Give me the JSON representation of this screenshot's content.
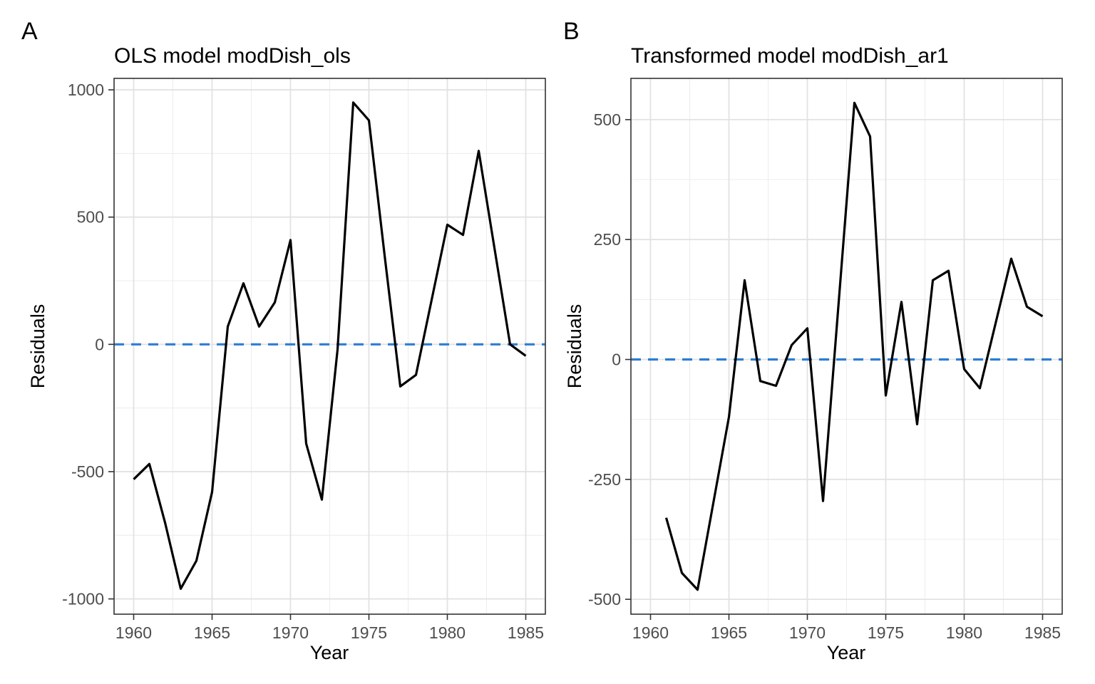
{
  "figure": {
    "tags": [
      "A",
      "B"
    ],
    "background_color": "#ffffff"
  },
  "style": {
    "series_line_color": "#000000",
    "zero_line_color": "#2d7dd2",
    "zero_line_style": "dashed",
    "panel_border_color": "#343434",
    "grid_major_color": "#e2e2e2",
    "grid_minor_color": "#ececec",
    "tick_label_color": "#4d4d4d",
    "text_color": "#000000"
  },
  "chart_data": [
    {
      "type": "line",
      "panel_tag": "A",
      "title": "OLS model modDish_ols",
      "xlabel": "Year",
      "ylabel": "Residuals",
      "x": [
        1960,
        1961,
        1962,
        1963,
        1964,
        1965,
        1966,
        1967,
        1968,
        1969,
        1970,
        1971,
        1972,
        1973,
        1974,
        1975,
        1976,
        1977,
        1978,
        1979,
        1980,
        1981,
        1982,
        1983,
        1984,
        1985
      ],
      "y": [
        -530,
        -470,
        -700,
        -960,
        -850,
        -580,
        70,
        240,
        70,
        165,
        410,
        -390,
        -610,
        -20,
        950,
        880,
        350,
        -165,
        -120,
        175,
        470,
        430,
        760,
        380,
        0,
        -45
      ],
      "x_ticks": [
        1960,
        1965,
        1970,
        1975,
        1980,
        1985
      ],
      "x_minor_ticks": [
        1962.5,
        1967.5,
        1972.5,
        1977.5,
        1982.5
      ],
      "y_ticks": [
        1000,
        500,
        0,
        -500,
        -1000
      ],
      "y_minor_ticks": [
        750,
        250,
        -250,
        -750
      ],
      "xlim": [
        1958.75,
        1986.25
      ],
      "ylim": [
        -1060,
        1045
      ],
      "reference_line": {
        "y": 0
      },
      "grid": true,
      "legend": "none"
    },
    {
      "type": "line",
      "panel_tag": "B",
      "title": "Transformed model modDish_ar1",
      "xlabel": "Year",
      "ylabel": "Residuals",
      "x": [
        1961,
        1962,
        1963,
        1964,
        1965,
        1966,
        1967,
        1968,
        1969,
        1970,
        1971,
        1972,
        1973,
        1974,
        1975,
        1976,
        1977,
        1978,
        1979,
        1980,
        1981,
        1982,
        1983,
        1984,
        1985
      ],
      "y": [
        -330,
        -445,
        -480,
        -300,
        -120,
        165,
        -45,
        -55,
        30,
        65,
        -295,
        120,
        535,
        465,
        -75,
        120,
        -135,
        165,
        185,
        -20,
        -60,
        75,
        210,
        110,
        90
      ],
      "x_ticks": [
        1960,
        1965,
        1970,
        1975,
        1980,
        1985
      ],
      "x_minor_ticks": [
        1962.5,
        1967.5,
        1972.5,
        1977.5,
        1982.5
      ],
      "y_ticks": [
        500,
        250,
        0,
        -250,
        -500
      ],
      "y_minor_ticks": [
        375,
        125,
        -125,
        -375
      ],
      "xlim": [
        1958.75,
        1986.25
      ],
      "ylim": [
        -531,
        586
      ],
      "reference_line": {
        "y": 0
      },
      "grid": true,
      "legend": "none"
    }
  ]
}
